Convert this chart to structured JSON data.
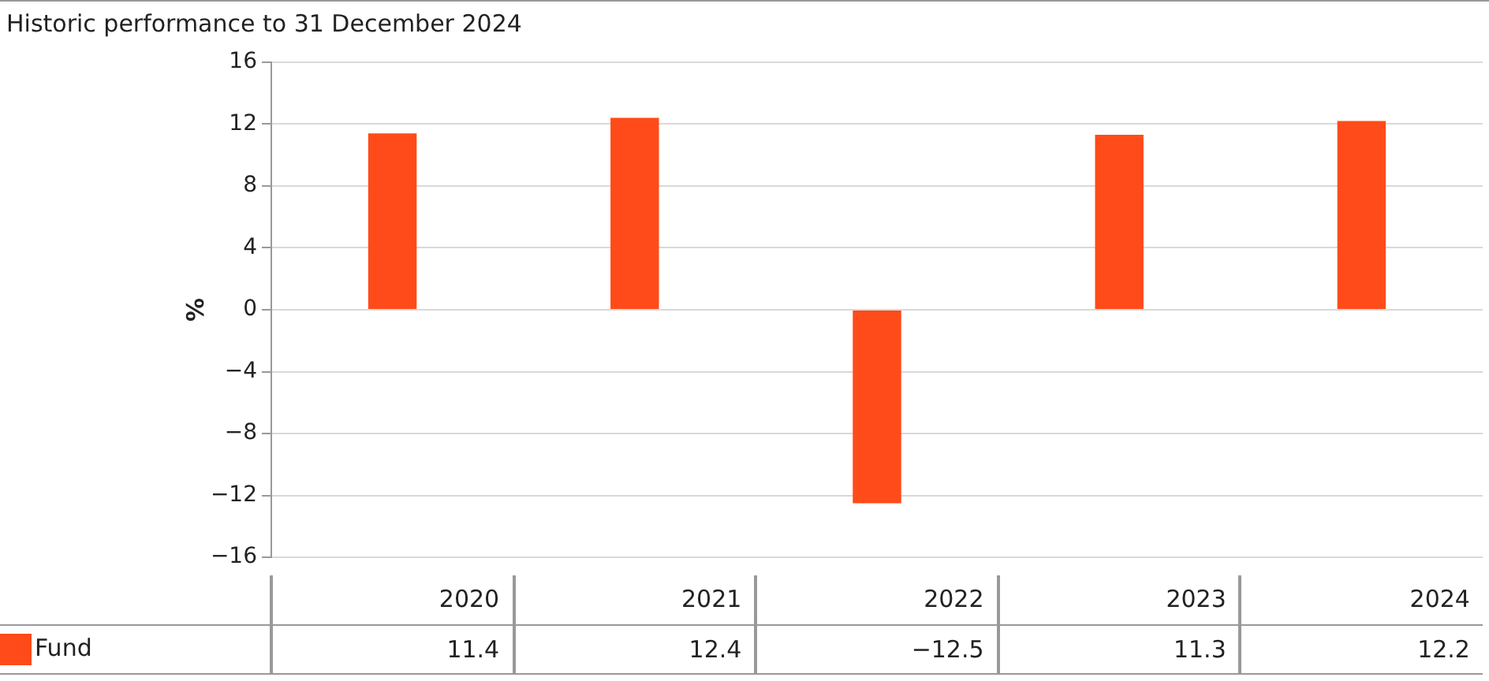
{
  "chart_data": {
    "type": "bar",
    "title": "Historic performance to 31 December 2024",
    "ylabel": "%",
    "categories": [
      "2020",
      "2021",
      "2022",
      "2023",
      "2024"
    ],
    "series": [
      {
        "name": "Fund",
        "color": "#ff4b19",
        "values": [
          11.4,
          12.4,
          -12.5,
          11.3,
          12.2
        ]
      }
    ],
    "ylim": [
      -16,
      16
    ],
    "yticks": [
      -16,
      -12,
      -8,
      -4,
      0,
      4,
      8,
      12,
      16
    ],
    "grid": "y",
    "legend": "bottom left",
    "data_labels": true,
    "tick_labels": "y"
  }
}
